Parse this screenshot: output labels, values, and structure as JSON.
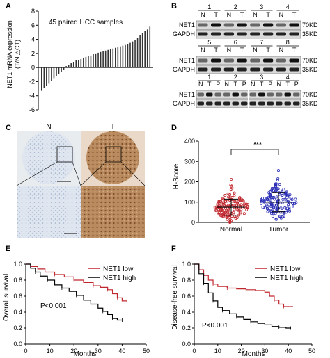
{
  "panels": {
    "A": "A",
    "B": "B",
    "C": "C",
    "D": "D",
    "E": "E",
    "F": "F"
  },
  "panel_a": {
    "annotation": "45 paired HCC samples",
    "ylabel_line1": "NET1 mRNA expression",
    "ylabel_line2": "(T/N △CT)",
    "yticks": [
      "8",
      "6",
      "4",
      "2",
      "0",
      "-2",
      "-4",
      "-6"
    ]
  },
  "panel_b": {
    "group1": {
      "numbers": [
        "1",
        "2",
        "3",
        "4"
      ],
      "lanes": [
        "N",
        "T",
        "N",
        "T",
        "N",
        "T",
        "N",
        "T"
      ]
    },
    "group2": {
      "numbers": [
        "5",
        "6",
        "7",
        "8"
      ],
      "lanes": [
        "N",
        "T",
        "N",
        "T",
        "N",
        "T",
        "N",
        "T"
      ]
    },
    "group3": {
      "numbers": [
        "1",
        "2",
        "3",
        "4"
      ],
      "lanes": [
        "N",
        "T",
        "P",
        "N",
        "T",
        "P",
        "N",
        "T",
        "P",
        "N",
        "T",
        "P"
      ]
    },
    "row_labels": [
      "NET1",
      "GAPDH"
    ],
    "sizes": [
      "70KD",
      "35KD"
    ]
  },
  "panel_c": {
    "labels": [
      "N",
      "T"
    ]
  },
  "chart_data": [
    {
      "type": "bar",
      "panel": "A",
      "annotation": "45 paired HCC samples",
      "ylabel": "NET1 mRNA expression (T/N △CT)",
      "ylim": [
        -6,
        8
      ],
      "values": [
        -3.3,
        -2.9,
        -2.6,
        -2.3,
        -1.9,
        -1.5,
        -1.2,
        -0.9,
        -0.6,
        -0.3,
        0.2,
        0.4,
        0.6,
        0.8,
        1.0,
        1.1,
        1.2,
        1.4,
        1.5,
        1.6,
        1.7,
        1.9,
        2.0,
        2.1,
        2.2,
        2.3,
        2.4,
        2.5,
        2.6,
        2.7,
        2.8,
        2.9,
        3.0,
        3.1,
        3.2,
        3.3,
        3.5,
        3.7,
        3.9,
        4.2,
        4.6,
        4.9,
        5.2,
        5.4,
        5.8
      ]
    },
    {
      "type": "scatter",
      "panel": "D",
      "ylabel": "H-Score",
      "ylim": [
        0,
        400
      ],
      "yticks": [
        "400",
        "300",
        "200",
        "100",
        "0"
      ],
      "categories": [
        "Normal",
        "Tumor"
      ],
      "means": [
        75,
        100
      ],
      "sd": [
        40,
        48
      ],
      "significance": "***"
    },
    {
      "type": "line",
      "panel": "E",
      "xlabel": "Months",
      "ylabel": "Overall survival",
      "xlim": [
        0,
        50
      ],
      "ylim": [
        0,
        1.0
      ],
      "xticks": [
        "0",
        "10",
        "20",
        "30",
        "40",
        "50"
      ],
      "yticks": [
        "1.0",
        "0.8",
        "0.6",
        "0.4",
        "0.2",
        "0.0"
      ],
      "legend": "top-right",
      "annotation": "P<0.001",
      "series": [
        {
          "name": "NET1 low",
          "color": "#c0272d",
          "points": [
            [
              0,
              1.0
            ],
            [
              2,
              0.97
            ],
            [
              5,
              0.94
            ],
            [
              8,
              0.9
            ],
            [
              12,
              0.87
            ],
            [
              16,
              0.84
            ],
            [
              20,
              0.8
            ],
            [
              24,
              0.77
            ],
            [
              28,
              0.73
            ],
            [
              31,
              0.71
            ],
            [
              34,
              0.68
            ],
            [
              36,
              0.63
            ],
            [
              38,
              0.58
            ],
            [
              40,
              0.54
            ],
            [
              42,
              0.54
            ]
          ]
        },
        {
          "name": "NET1 high",
          "color": "#000000",
          "points": [
            [
              0,
              1.0
            ],
            [
              2,
              0.95
            ],
            [
              4,
              0.9
            ],
            [
              6,
              0.85
            ],
            [
              9,
              0.8
            ],
            [
              12,
              0.74
            ],
            [
              15,
              0.7
            ],
            [
              18,
              0.66
            ],
            [
              21,
              0.61
            ],
            [
              24,
              0.55
            ],
            [
              27,
              0.5
            ],
            [
              30,
              0.45
            ],
            [
              32,
              0.41
            ],
            [
              34,
              0.37
            ],
            [
              36,
              0.32
            ],
            [
              38,
              0.3
            ],
            [
              40,
              0.3
            ]
          ]
        }
      ]
    },
    {
      "type": "line",
      "panel": "F",
      "xlabel": "Months",
      "ylabel": "Disease-free survival",
      "xlim": [
        0,
        50
      ],
      "ylim": [
        0,
        1.0
      ],
      "xticks": [
        "0",
        "10",
        "20",
        "30",
        "40",
        "50"
      ],
      "yticks": [
        "1.0",
        "0.8",
        "0.6",
        "0.4",
        "0.2",
        "0.0"
      ],
      "legend": "top-right",
      "annotation": "P<0.001",
      "series": [
        {
          "name": "NET1 low",
          "color": "#c0272d",
          "points": [
            [
              0,
              1.0
            ],
            [
              2,
              0.93
            ],
            [
              4,
              0.86
            ],
            [
              6,
              0.8
            ],
            [
              8,
              0.75
            ],
            [
              10,
              0.72
            ],
            [
              14,
              0.7
            ],
            [
              18,
              0.69
            ],
            [
              22,
              0.68
            ],
            [
              26,
              0.67
            ],
            [
              30,
              0.65
            ],
            [
              32,
              0.6
            ],
            [
              34,
              0.55
            ],
            [
              36,
              0.5
            ],
            [
              38,
              0.47
            ],
            [
              42,
              0.47
            ]
          ]
        },
        {
          "name": "NET1 high",
          "color": "#000000",
          "points": [
            [
              0,
              1.0
            ],
            [
              2,
              0.88
            ],
            [
              4,
              0.76
            ],
            [
              6,
              0.64
            ],
            [
              8,
              0.54
            ],
            [
              10,
              0.46
            ],
            [
              12,
              0.42
            ],
            [
              15,
              0.38
            ],
            [
              18,
              0.34
            ],
            [
              21,
              0.31
            ],
            [
              24,
              0.28
            ],
            [
              27,
              0.26
            ],
            [
              30,
              0.24
            ],
            [
              33,
              0.22
            ],
            [
              36,
              0.21
            ],
            [
              39,
              0.2
            ],
            [
              41,
              0.2
            ]
          ]
        }
      ]
    }
  ]
}
